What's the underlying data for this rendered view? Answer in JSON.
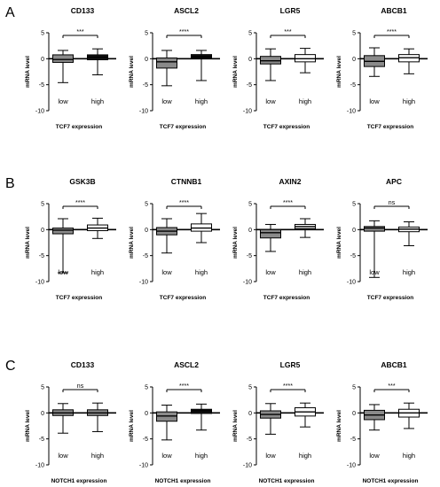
{
  "panel_labels": [
    "A",
    "B",
    "C"
  ],
  "chart_data": [
    {
      "type": "box",
      "row": 0,
      "col": 0,
      "title": "CD133",
      "ylabel": "mRNA level",
      "xlabel": "TCF7 expression",
      "categories": [
        "low",
        "high"
      ],
      "ylim": [
        -10,
        5
      ],
      "yticks": [
        5,
        0,
        -5,
        -10
      ],
      "significance": "***",
      "boxes": [
        {
          "min": -4.6,
          "q1": -0.7,
          "median": -0.15,
          "q3": 0.75,
          "max": 1.6,
          "color": "#8a8a8a"
        },
        {
          "min": -3.1,
          "q1": -0.2,
          "median": 0.3,
          "q3": 0.75,
          "max": 1.9,
          "color": "#111111"
        }
      ]
    },
    {
      "type": "box",
      "row": 0,
      "col": 1,
      "title": "ASCL2",
      "ylabel": "mRNA level",
      "xlabel": "TCF7 expression",
      "categories": [
        "low",
        "high"
      ],
      "ylim": [
        -10,
        5
      ],
      "yticks": [
        5,
        0,
        -5,
        -10
      ],
      "significance": "****",
      "boxes": [
        {
          "min": -5.2,
          "q1": -1.8,
          "median": -0.6,
          "q3": 0.15,
          "max": 1.6,
          "color": "#8a8a8a"
        },
        {
          "min": -4.2,
          "q1": 0.1,
          "median": 0.4,
          "q3": 0.8,
          "max": 1.6,
          "color": "#111111"
        }
      ]
    },
    {
      "type": "box",
      "row": 0,
      "col": 2,
      "title": "LGR5",
      "ylabel": "mRNA level",
      "xlabel": "TCF7 expression",
      "categories": [
        "low",
        "high"
      ],
      "ylim": [
        -10,
        5
      ],
      "yticks": [
        5,
        0,
        -5,
        -10
      ],
      "significance": "***",
      "boxes": [
        {
          "min": -4.2,
          "q1": -1.0,
          "median": -0.4,
          "q3": 0.45,
          "max": 1.9,
          "color": "#8a8a8a"
        },
        {
          "min": -2.7,
          "q1": -0.6,
          "median": 0.0,
          "q3": 0.8,
          "max": 2.0,
          "color": "#ffffff"
        }
      ]
    },
    {
      "type": "box",
      "row": 0,
      "col": 3,
      "title": "ABCB1",
      "ylabel": "mRNA level",
      "xlabel": "TCF7 expression",
      "categories": [
        "low",
        "high"
      ],
      "ylim": [
        -10,
        5
      ],
      "yticks": [
        5,
        0,
        -5,
        -10
      ],
      "significance": "****",
      "boxes": [
        {
          "min": -3.4,
          "q1": -1.5,
          "median": -0.5,
          "q3": 0.6,
          "max": 2.1,
          "color": "#8a8a8a"
        },
        {
          "min": -2.9,
          "q1": -0.6,
          "median": 0.2,
          "q3": 0.8,
          "max": 1.9,
          "color": "#ffffff"
        }
      ]
    },
    {
      "type": "box",
      "row": 1,
      "col": 0,
      "title": "GSK3B",
      "ylabel": "mRNA level",
      "xlabel": "TCF7 expression",
      "categories": [
        "low",
        "high"
      ],
      "ylim": [
        -10,
        5
      ],
      "yticks": [
        5,
        0,
        -5,
        -10
      ],
      "significance": "****",
      "boxes": [
        {
          "min": -8.3,
          "q1": -0.8,
          "median": -0.1,
          "q3": 0.3,
          "max": 2.1,
          "color": "#8a8a8a"
        },
        {
          "min": -1.7,
          "q1": -0.2,
          "median": 0.3,
          "q3": 0.9,
          "max": 2.2,
          "color": "#ffffff"
        }
      ]
    },
    {
      "type": "box",
      "row": 1,
      "col": 1,
      "title": "CTNNB1",
      "ylabel": "mRNA level",
      "xlabel": "TCF7 expression",
      "categories": [
        "low",
        "high"
      ],
      "ylim": [
        -10,
        5
      ],
      "yticks": [
        5,
        0,
        -5,
        -10
      ],
      "significance": "****",
      "boxes": [
        {
          "min": -4.5,
          "q1": -1.0,
          "median": -0.3,
          "q3": 0.4,
          "max": 2.1,
          "color": "#8a8a8a"
        },
        {
          "min": -2.5,
          "q1": -0.3,
          "median": 0.3,
          "q3": 1.1,
          "max": 3.1,
          "color": "#ffffff"
        }
      ]
    },
    {
      "type": "box",
      "row": 1,
      "col": 2,
      "title": "AXIN2",
      "ylabel": "mRNA level",
      "xlabel": "TCF7 expression",
      "categories": [
        "low",
        "high"
      ],
      "ylim": [
        -10,
        5
      ],
      "yticks": [
        5,
        0,
        -5,
        -10
      ],
      "significance": "****",
      "boxes": [
        {
          "min": -4.2,
          "q1": -1.6,
          "median": -0.6,
          "q3": 0.0,
          "max": 1.0,
          "color": "#8a8a8a"
        },
        {
          "min": -1.5,
          "q1": 0.2,
          "median": 0.6,
          "q3": 1.0,
          "max": 2.1,
          "color": "#ffffff"
        }
      ]
    },
    {
      "type": "box",
      "row": 1,
      "col": 3,
      "title": "APC",
      "ylabel": "mRNA level",
      "xlabel": "TCF7 expression",
      "categories": [
        "low",
        "high"
      ],
      "ylim": [
        -10,
        5
      ],
      "yticks": [
        5,
        0,
        -5,
        -10
      ],
      "significance": "ns",
      "boxes": [
        {
          "min": -9.2,
          "q1": -0.3,
          "median": 0.3,
          "q3": 0.6,
          "max": 1.7,
          "color": "#8a8a8a"
        },
        {
          "min": -3.1,
          "q1": -0.4,
          "median": 0.1,
          "q3": 0.5,
          "max": 1.5,
          "color": "#ffffff"
        }
      ]
    },
    {
      "type": "box",
      "row": 2,
      "col": 0,
      "title": "CD133",
      "ylabel": "mRNA level",
      "xlabel": "NOTCH1 expression",
      "categories": [
        "low",
        "high"
      ],
      "ylim": [
        -10,
        5
      ],
      "yticks": [
        5,
        0,
        -5,
        -10
      ],
      "significance": "ns",
      "boxes": [
        {
          "min": -3.9,
          "q1": -0.5,
          "median": 0.0,
          "q3": 0.6,
          "max": 1.8,
          "color": "#8a8a8a"
        },
        {
          "min": -3.6,
          "q1": -0.5,
          "median": 0.0,
          "q3": 0.6,
          "max": 1.9,
          "color": "#8a8a8a"
        }
      ]
    },
    {
      "type": "box",
      "row": 2,
      "col": 1,
      "title": "ASCL2",
      "ylabel": "mRNA level",
      "xlabel": "NOTCH1 expression",
      "categories": [
        "low",
        "high"
      ],
      "ylim": [
        -10,
        5
      ],
      "yticks": [
        5,
        0,
        -5,
        -10
      ],
      "significance": "****",
      "boxes": [
        {
          "min": -5.2,
          "q1": -1.6,
          "median": -0.6,
          "q3": 0.2,
          "max": 1.5,
          "color": "#8a8a8a"
        },
        {
          "min": -3.3,
          "q1": -0.1,
          "median": 0.4,
          "q3": 0.7,
          "max": 1.7,
          "color": "#111111"
        }
      ]
    },
    {
      "type": "box",
      "row": 2,
      "col": 2,
      "title": "LGR5",
      "ylabel": "mRNA level",
      "xlabel": "NOTCH1 expression",
      "categories": [
        "low",
        "high"
      ],
      "ylim": [
        -10,
        5
      ],
      "yticks": [
        5,
        0,
        -5,
        -10
      ],
      "significance": "****",
      "boxes": [
        {
          "min": -4.1,
          "q1": -1.0,
          "median": -0.3,
          "q3": 0.4,
          "max": 1.8,
          "color": "#8a8a8a"
        },
        {
          "min": -2.7,
          "q1": -0.6,
          "median": 0.2,
          "q3": 1.0,
          "max": 1.9,
          "color": "#ffffff"
        }
      ]
    },
    {
      "type": "box",
      "row": 2,
      "col": 3,
      "title": "ABCB1",
      "ylabel": "mRNA level",
      "xlabel": "NOTCH1 expression",
      "categories": [
        "low",
        "high"
      ],
      "ylim": [
        -10,
        5
      ],
      "yticks": [
        5,
        0,
        -5,
        -10
      ],
      "significance": "***",
      "boxes": [
        {
          "min": -3.3,
          "q1": -1.3,
          "median": -0.4,
          "q3": 0.5,
          "max": 1.6,
          "color": "#8a8a8a"
        },
        {
          "min": -3.0,
          "q1": -0.8,
          "median": 0.0,
          "q3": 0.7,
          "max": 1.9,
          "color": "#ffffff"
        }
      ]
    }
  ]
}
